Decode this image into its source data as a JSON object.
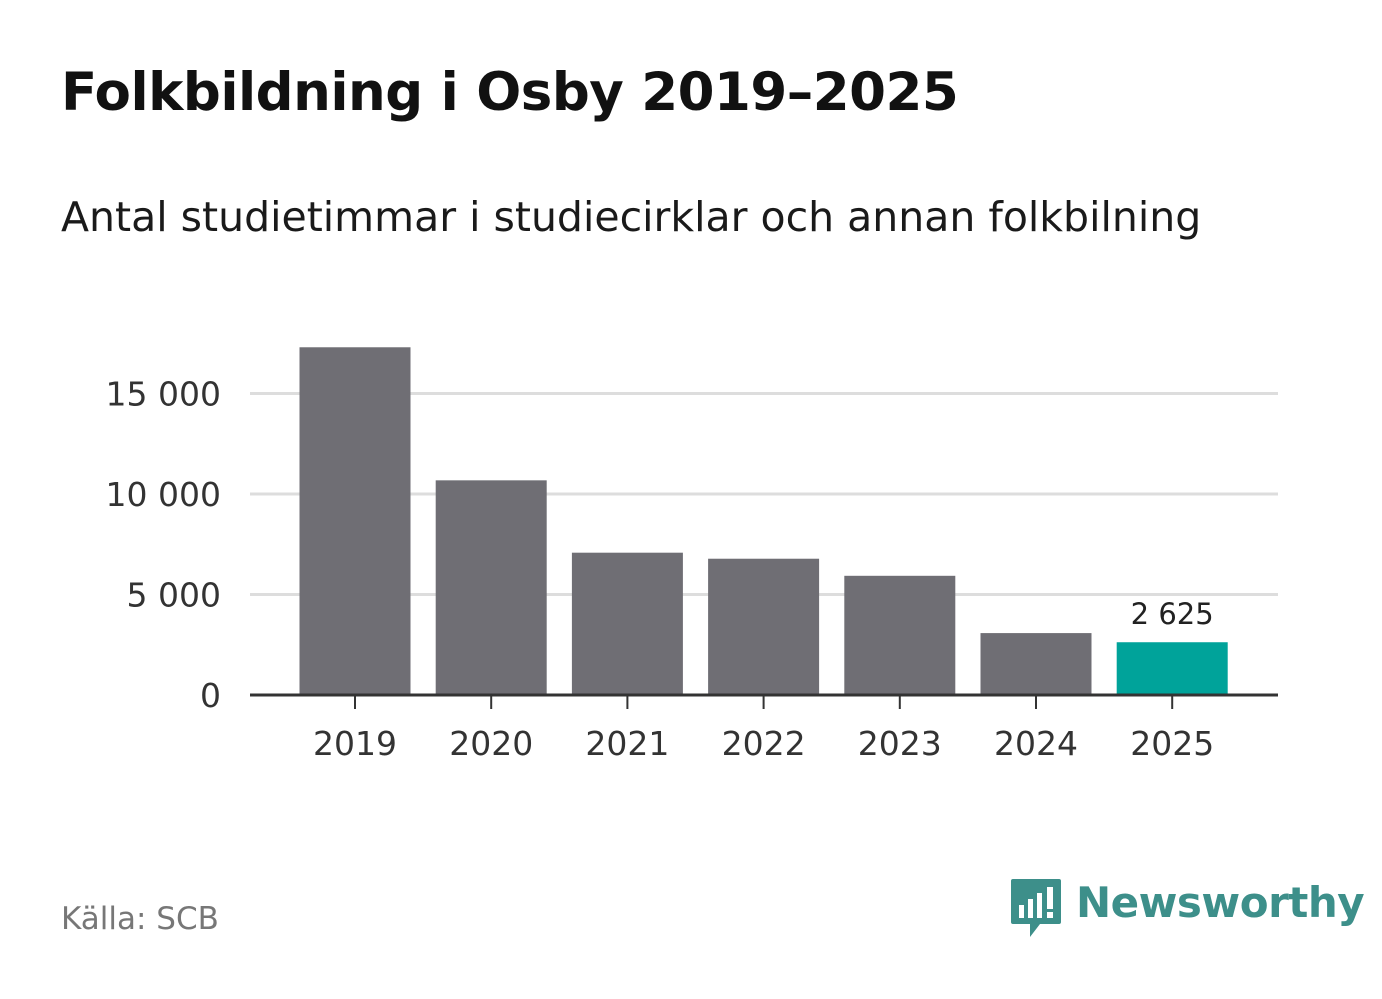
{
  "header": {
    "title": "Folkbildning i Osby 2019–2025",
    "subtitle": "Antal studietimmar i studiecirklar och annan folkbilning"
  },
  "footer": {
    "source": "Källa: SCB",
    "brand_name": "Newsworthy",
    "brand_icon": "bar-chart-speech-bubble-icon"
  },
  "colors": {
    "bar": "#6f6e74",
    "highlight": "#00a39a",
    "grid": "#dddddd",
    "axis": "#333333",
    "brand": "#3d8f8a"
  },
  "chart_data": {
    "type": "bar",
    "categories": [
      "2019",
      "2020",
      "2021",
      "2022",
      "2023",
      "2024",
      "2025"
    ],
    "values": [
      17300,
      10680,
      7080,
      6780,
      5930,
      3080,
      2625
    ],
    "highlight_index": 6,
    "value_labels": [
      {
        "index": 6,
        "text": "2 625"
      }
    ],
    "title": "Folkbildning i Osby 2019–2025",
    "subtitle": "Antal studietimmar i studiecirklar och annan folkbilning",
    "xlabel": "",
    "ylabel": "",
    "ylim": [
      0,
      17300
    ],
    "yticks": [
      0,
      5000,
      10000,
      15000
    ],
    "ytick_labels": [
      "0",
      "5 000",
      "10 000",
      "15 000"
    ],
    "grid": true,
    "legend": "none"
  }
}
